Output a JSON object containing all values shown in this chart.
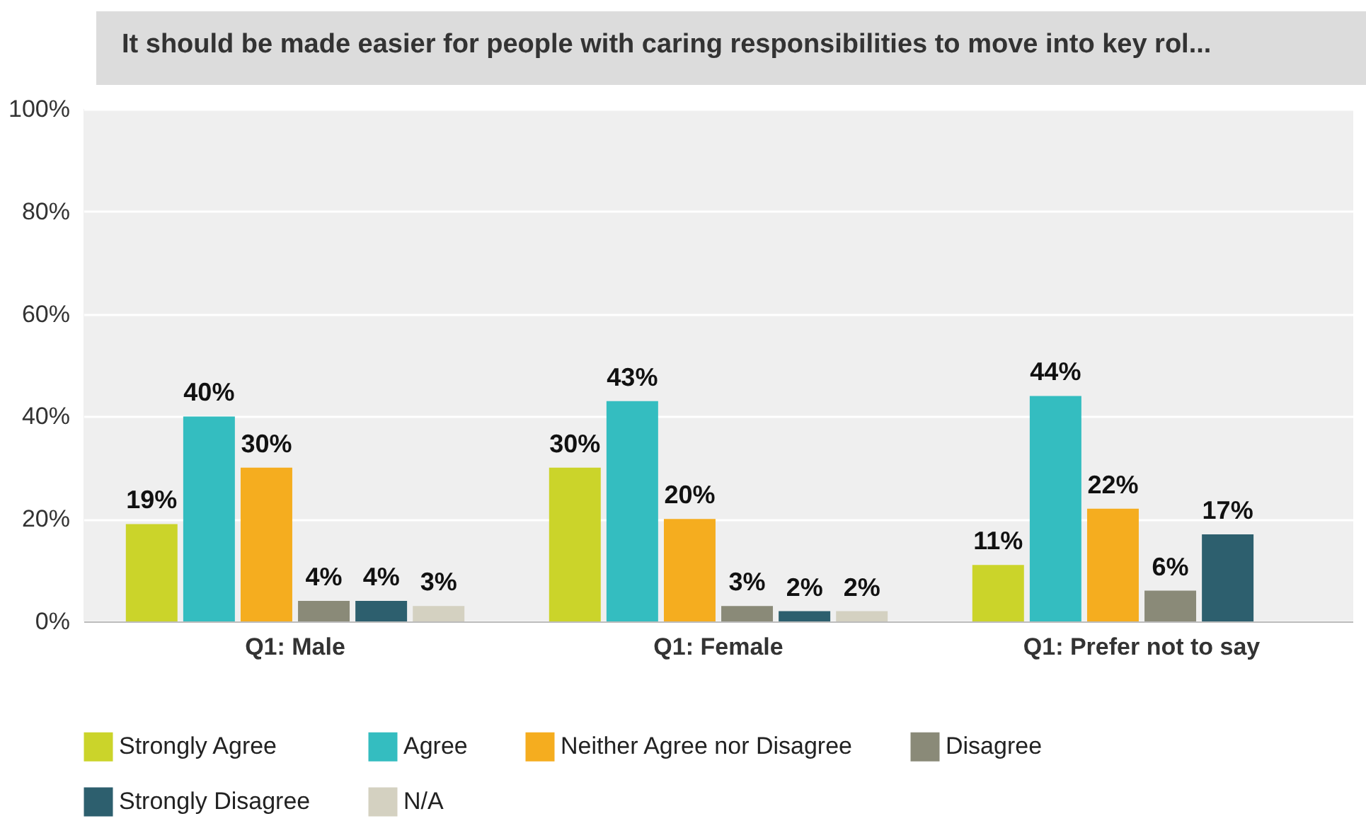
{
  "chart_data": {
    "type": "bar",
    "title": "It should be made easier for people with caring responsibilities to move into key rol...",
    "categories": [
      "Q1: Male",
      "Q1: Female",
      "Q1: Prefer not to say"
    ],
    "series": [
      {
        "name": "Strongly Agree",
        "color": "#cbd42a",
        "values": [
          19,
          30,
          11
        ],
        "value_labels": [
          "19%",
          "30%",
          "11%"
        ]
      },
      {
        "name": "Agree",
        "color": "#34bdc0",
        "values": [
          40,
          43,
          44
        ],
        "value_labels": [
          "40%",
          "43%",
          "44%"
        ]
      },
      {
        "name": "Neither Agree nor Disagree",
        "color": "#f5ad1f",
        "values": [
          30,
          20,
          22
        ],
        "value_labels": [
          "30%",
          "20%",
          "22%"
        ]
      },
      {
        "name": "Disagree",
        "color": "#8a8a78",
        "values": [
          4,
          3,
          6
        ],
        "value_labels": [
          "4%",
          "3%",
          "6%"
        ]
      },
      {
        "name": "Strongly Disagree",
        "color": "#2d5f6e",
        "values": [
          4,
          2,
          17
        ],
        "value_labels": [
          "4%",
          "2%",
          "17%"
        ]
      },
      {
        "name": "N/A",
        "color": "#d4d1c1",
        "values": [
          3,
          2,
          null
        ],
        "value_labels": [
          "3%",
          "2%",
          null
        ]
      }
    ],
    "ylim": [
      0,
      100
    ],
    "yticks": [
      {
        "value": 0,
        "label": "0%"
      },
      {
        "value": 20,
        "label": "20%"
      },
      {
        "value": 40,
        "label": "40%"
      },
      {
        "value": 60,
        "label": "60%"
      },
      {
        "value": 80,
        "label": "80%"
      },
      {
        "value": 100,
        "label": "100%"
      }
    ],
    "grid": "y",
    "legend": "bottom"
  }
}
